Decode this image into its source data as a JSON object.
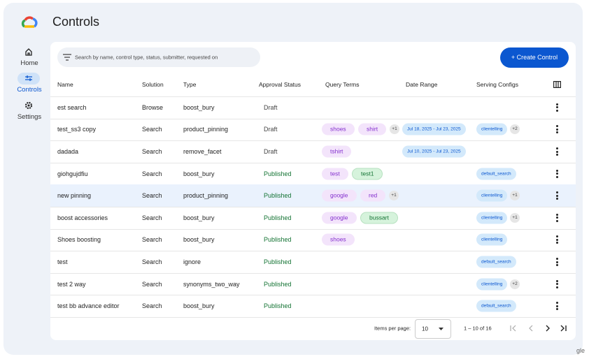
{
  "app": {
    "title": "Controls",
    "nav": [
      {
        "label": "Home"
      },
      {
        "label": "Controls",
        "active": true
      },
      {
        "label": "Settings"
      }
    ]
  },
  "toolbar": {
    "search_placeholder": "Search by name, control type, status, submitter, requested on",
    "create_button": "+ Create Control"
  },
  "table": {
    "columns": [
      "Name",
      "Solution",
      "Type",
      "Approval Status",
      "Query Terms",
      "Date Range",
      "Serving Configs"
    ],
    "rows": [
      {
        "name": "est search",
        "solution": "Browse",
        "type": "boost_bury",
        "status": "Draft",
        "query_terms": [],
        "date_range": [],
        "serving_configs": []
      },
      {
        "name": "test_ss3 copy",
        "solution": "Search",
        "type": "product_pinning",
        "status": "Draft",
        "query_terms": [
          {
            "text": "shoes",
            "tone": "purple"
          },
          {
            "text": "shirt",
            "tone": "purple"
          }
        ],
        "query_more": "+1",
        "date_range": [
          "Jul 18, 2025 - Jul 23, 2025"
        ],
        "serving_configs": [
          "clientelling"
        ],
        "serving_more": "+2"
      },
      {
        "name": "dadada",
        "solution": "Search",
        "type": "remove_facet",
        "status": "Draft",
        "query_terms": [
          {
            "text": "tshirt",
            "tone": "purple"
          }
        ],
        "date_range": [
          "Jul 10, 2025 - Jul 23, 2025"
        ],
        "serving_configs": []
      },
      {
        "name": "giohgujdfiu",
        "solution": "Search",
        "type": "boost_bury",
        "status": "Published",
        "query_terms": [
          {
            "text": "test",
            "tone": "purple"
          },
          {
            "text": "test1",
            "tone": "green"
          }
        ],
        "date_range": [],
        "serving_configs": [
          "default_search"
        ]
      },
      {
        "name": "new pinning",
        "solution": "Search",
        "type": "product_pinning",
        "status": "Published",
        "selected": true,
        "query_terms": [
          {
            "text": "google",
            "tone": "purple"
          },
          {
            "text": "red",
            "tone": "purple"
          }
        ],
        "query_more": "+1",
        "date_range": [],
        "serving_configs": [
          "clientelling"
        ],
        "serving_more": "+1"
      },
      {
        "name": "boost accessories",
        "solution": "Search",
        "type": "boost_bury",
        "status": "Published",
        "query_terms": [
          {
            "text": "google",
            "tone": "purple"
          },
          {
            "text": "bussart",
            "tone": "green"
          }
        ],
        "date_range": [],
        "serving_configs": [
          "clientelling"
        ],
        "serving_more": "+1"
      },
      {
        "name": "Shoes boosting",
        "solution": "Search",
        "type": "boost_bury",
        "status": "Published",
        "query_terms": [
          {
            "text": "shoes",
            "tone": "purple"
          }
        ],
        "date_range": [],
        "serving_configs": [
          "clientelling"
        ]
      },
      {
        "name": "test",
        "solution": "Search",
        "type": "ignore",
        "status": "Published",
        "query_terms": [],
        "date_range": [],
        "serving_configs": [
          "default_search"
        ]
      },
      {
        "name": "test 2 way",
        "solution": "Search",
        "type": "synonyms_two_way",
        "status": "Published",
        "query_terms": [],
        "date_range": [],
        "serving_configs": [
          "clientelling"
        ],
        "serving_more": "+2"
      },
      {
        "name": "test bb advance editor",
        "solution": "Search",
        "type": "boost_bury",
        "status": "Published",
        "query_terms": [],
        "date_range": [],
        "serving_configs": [
          "default_search"
        ]
      }
    ]
  },
  "pagination": {
    "items_per_page_label": "Items per page:",
    "page_size": "10",
    "range": "1 – 10 of 16"
  },
  "footer_fragment": "gle"
}
